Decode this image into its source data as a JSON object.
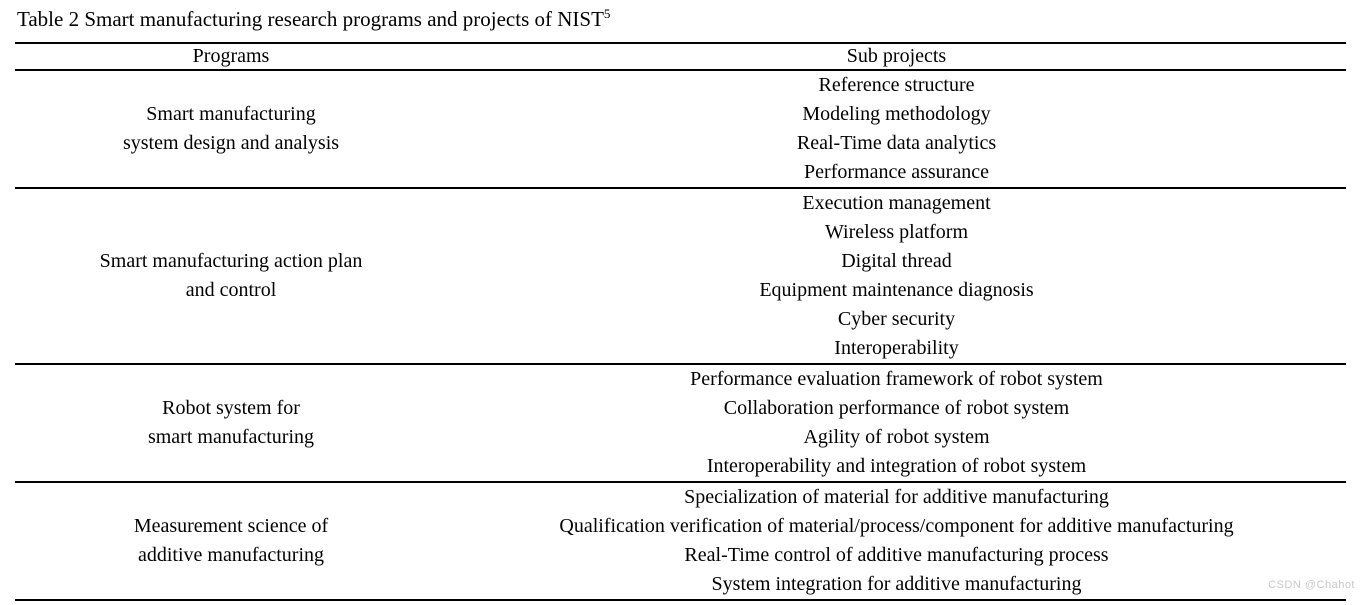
{
  "page": {
    "background_color": "#ffffff",
    "text_color": "#000000",
    "rule_color": "#000000"
  },
  "caption": {
    "text": "Table 2 Smart manufacturing research programs and projects of NIST",
    "superscript": "5"
  },
  "table": {
    "headers": {
      "programs": "Programs",
      "subprojects": "Sub projects"
    },
    "groups": [
      {
        "program_lines": [
          "Smart manufacturing",
          "system design and analysis"
        ],
        "subprojects": [
          "Reference structure",
          "Modeling methodology",
          "Real-Time data analytics",
          "Performance assurance"
        ]
      },
      {
        "program_lines": [
          "Smart manufacturing action plan",
          "and control"
        ],
        "subprojects": [
          "Execution management",
          "Wireless platform",
          "Digital thread",
          "Equipment maintenance diagnosis",
          "Cyber security",
          "Interoperability"
        ]
      },
      {
        "program_lines": [
          "Robot system for",
          "smart manufacturing"
        ],
        "subprojects": [
          "Performance evaluation framework of robot system",
          "Collaboration performance of robot system",
          "Agility of robot system",
          "Interoperability and integration of robot system"
        ]
      },
      {
        "program_lines": [
          "Measurement science of",
          "additive manufacturing"
        ],
        "subprojects": [
          "Specialization of material for additive manufacturing",
          "Qualification verification of material/process/component for additive manufacturing",
          "Real-Time control of additive manufacturing process",
          "System integration for additive manufacturing"
        ]
      }
    ]
  },
  "watermark": {
    "text": "CSDN @Chahot",
    "color": "#c9c9c9"
  }
}
